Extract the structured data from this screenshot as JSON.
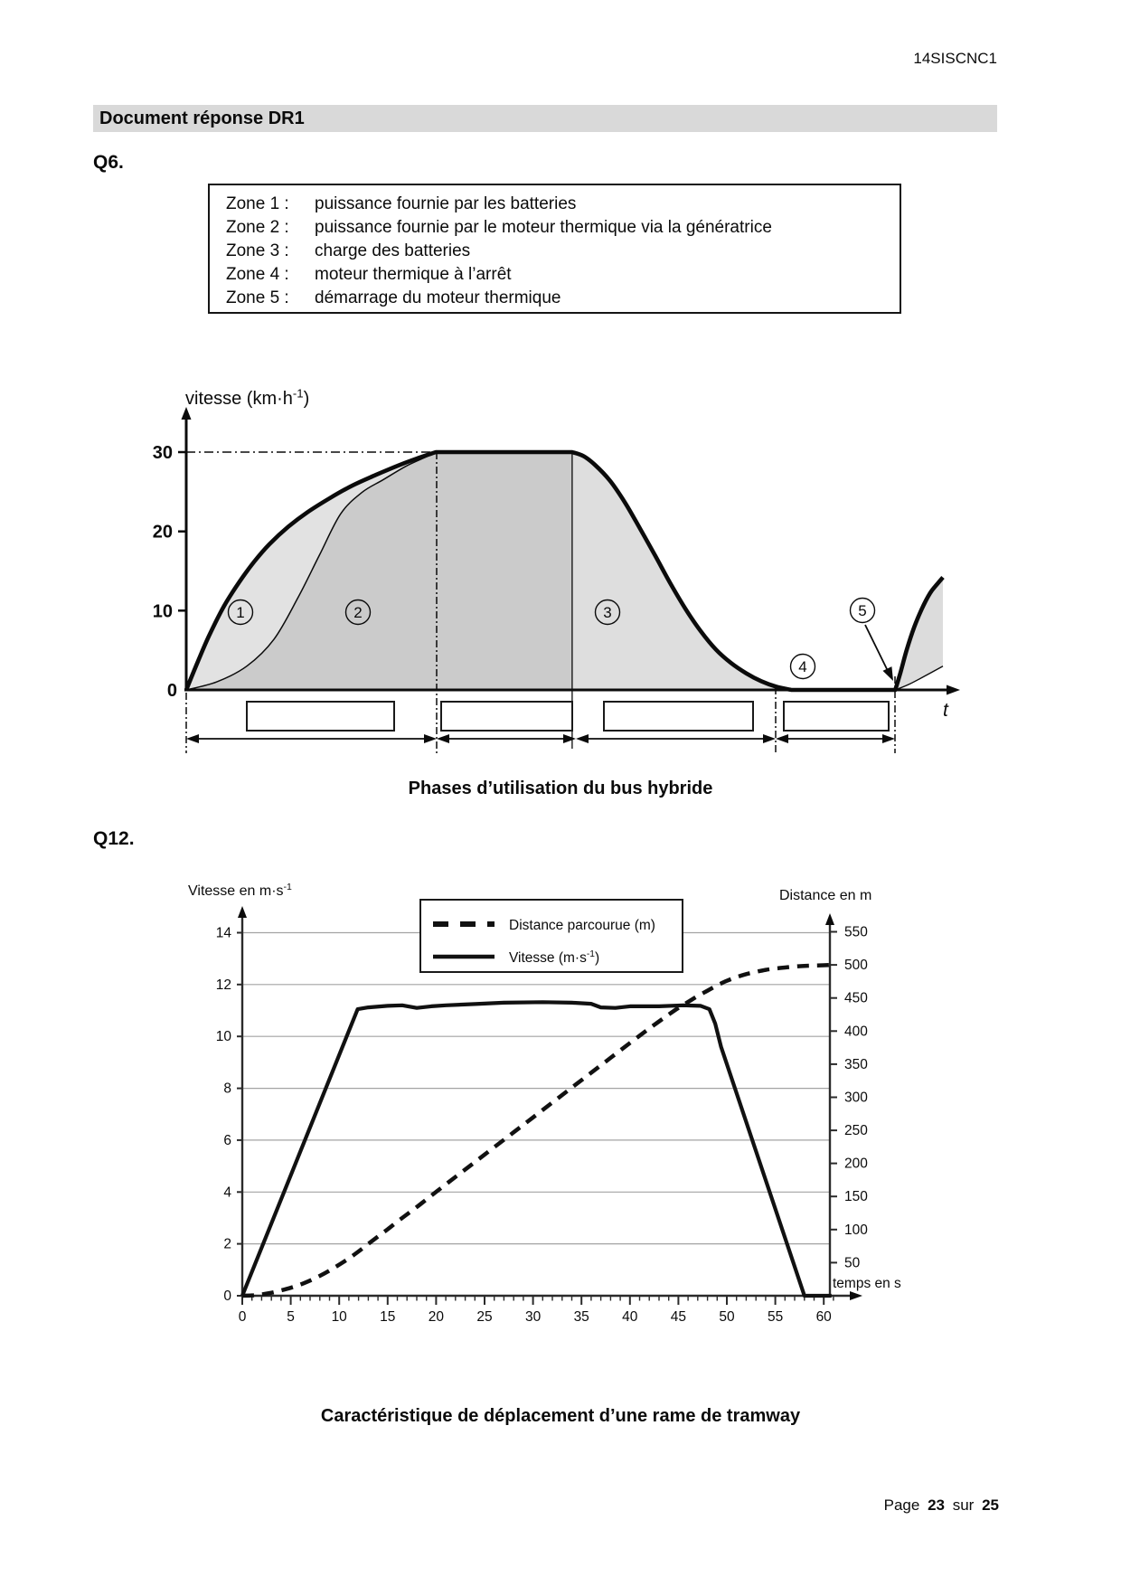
{
  "page": {
    "doc_code": "14SISCNC1",
    "footer_parts": [
      "Page",
      "23",
      "sur",
      "25"
    ]
  },
  "header": {
    "title": "Document réponse DR1"
  },
  "q6": {
    "label": "Q6.",
    "zones": [
      {
        "name": "Zone 1 :",
        "desc": "puissance fournie par les batteries"
      },
      {
        "name": "Zone 2 :",
        "desc": "puissance fournie par le moteur thermique via la génératrice"
      },
      {
        "name": "Zone 3 :",
        "desc": "charge des batteries"
      },
      {
        "name": "Zone 4 :",
        "desc": "moteur thermique à l’arrêt"
      },
      {
        "name": "Zone 5 :",
        "desc": "démarrage du moteur thermique"
      }
    ],
    "caption": "Phases d’utilisation du bus hybride"
  },
  "q12": {
    "label": "Q12.",
    "caption": "Caractéristique de déplacement d’une rame de tramway"
  },
  "chart_data": [
    {
      "id": "bus_phases",
      "type": "line",
      "title": "Phases d’utilisation du bus hybride",
      "ylabel": {
        "pre": "vitesse (km·h",
        "sup": "-1",
        "post": ")"
      },
      "xlabel": "t",
      "y_ticks": [
        30,
        20,
        10
      ],
      "y_zero_label": "0",
      "ylim": [
        0,
        33
      ],
      "grid": "off",
      "zone_markers": [
        "1",
        "2",
        "3",
        "4",
        "5"
      ],
      "answer_boxes": 4,
      "series": [
        {
          "name": "vitesse du bus (courbe épaisse)",
          "x_unit": "percent_of_time_axis",
          "y_unit": "km/h",
          "segments": {
            "rise": [
              [
                0,
                0
              ],
              [
                1.5,
                3.5
              ],
              [
                3,
                6.8
              ],
              [
                5,
                10.6
              ],
              [
                7,
                13.6
              ],
              [
                9,
                16.2
              ],
              [
                11,
                18.4
              ],
              [
                13.5,
                20.6
              ],
              [
                16,
                22.4
              ],
              [
                19,
                24.2
              ],
              [
                22,
                25.8
              ],
              [
                25,
                27.1
              ],
              [
                28,
                28.3
              ],
              [
                30.5,
                29.2
              ],
              [
                33,
                30
              ]
            ],
            "plateau": [
              [
                33,
                30
              ],
              [
                51,
                30
              ]
            ],
            "decline": [
              [
                51,
                30
              ],
              [
                52.5,
                29.5
              ],
              [
                54,
                28.4
              ],
              [
                56,
                26.4
              ],
              [
                58,
                23.6
              ],
              [
                60,
                20.3
              ],
              [
                62,
                16.9
              ],
              [
                64,
                13.4
              ],
              [
                66,
                10.2
              ],
              [
                68,
                7.4
              ],
              [
                70,
                5.1
              ],
              [
                72,
                3.4
              ],
              [
                74,
                2.1
              ],
              [
                76,
                1.1
              ],
              [
                78,
                0.4
              ],
              [
                80,
                0
              ]
            ],
            "stop": [
              [
                80,
                0
              ],
              [
                93.7,
                0
              ]
            ],
            "restart": [
              [
                93.7,
                0
              ],
              [
                94.4,
                2.2
              ],
              [
                95.2,
                5
              ],
              [
                96.2,
                7.9
              ],
              [
                97.2,
                10.2
              ],
              [
                98.3,
                12.2
              ],
              [
                99.2,
                13.3
              ],
              [
                100,
                14.2
              ]
            ]
          }
        },
        {
          "name": "frontière zone1/zone2 (courbe fine)",
          "points": [
            [
              0,
              0
            ],
            [
              4,
              1
            ],
            [
              8,
              3
            ],
            [
              11.6,
              6.4
            ],
            [
              14.8,
              11.7
            ],
            [
              17.6,
              17
            ],
            [
              20.4,
              22.2
            ],
            [
              23.2,
              24.9
            ],
            [
              26,
              26.5
            ],
            [
              29,
              28.2
            ],
            [
              31.5,
              29.3
            ],
            [
              33,
              30
            ]
          ]
        },
        {
          "name": "courbe fine zone 5",
          "points": [
            [
              93.7,
              0
            ],
            [
              95.5,
              0.7
            ],
            [
              97.5,
              1.7
            ],
            [
              100,
              3
            ]
          ]
        }
      ]
    },
    {
      "id": "tramway",
      "type": "line",
      "title": "Caractéristique de déplacement d’une rame de tramway",
      "xlabel": "temps en s",
      "ylabel_left": {
        "pre": "Vitesse en m·s",
        "sup": "-1"
      },
      "ylabel_right": "Distance en m",
      "x_ticks": [
        0,
        5,
        10,
        15,
        20,
        25,
        30,
        35,
        40,
        45,
        50,
        55,
        60
      ],
      "x_minor_step": 1,
      "x_range": [
        0,
        62
      ],
      "y_left_ticks": [
        0,
        2,
        4,
        6,
        8,
        10,
        12,
        14
      ],
      "y_left_range": [
        0,
        15
      ],
      "y_right_ticks": [
        550,
        500,
        450,
        400,
        350,
        300,
        250,
        200,
        150,
        100,
        50
      ],
      "y_right_range": [
        0,
        565
      ],
      "grid": "horizontal",
      "legend_position": "top-center",
      "legend": [
        {
          "label": "Distance parcourue (m)",
          "style": "dashed"
        },
        {
          "label_pre": "Vitesse (m·s",
          "label_sup": "-1",
          "label_post": ")",
          "style": "solid"
        }
      ],
      "series": [
        {
          "name": "Distance parcourue (m)",
          "axis": "right",
          "style": "dashed",
          "points": [
            [
              0,
              0
            ],
            [
              1,
              0.5
            ],
            [
              2,
              2
            ],
            [
              3,
              4.5
            ],
            [
              4,
              8
            ],
            [
              5,
              12
            ],
            [
              6,
              17
            ],
            [
              7,
              23
            ],
            [
              8,
              30
            ],
            [
              9,
              38
            ],
            [
              10,
              47
            ],
            [
              11,
              56.5
            ],
            [
              12,
              67
            ],
            [
              13,
              78.5
            ],
            [
              14,
              89.5
            ],
            [
              15,
              100.5
            ],
            [
              16,
              112
            ],
            [
              17,
              123
            ],
            [
              18,
              134
            ],
            [
              19,
              145.5
            ],
            [
              20,
              157
            ],
            [
              22,
              179.5
            ],
            [
              24,
              202
            ],
            [
              26,
              224.5
            ],
            [
              28,
              247
            ],
            [
              30,
              269.5
            ],
            [
              32,
              292
            ],
            [
              34,
              314.5
            ],
            [
              36,
              337
            ],
            [
              38,
              359.5
            ],
            [
              40,
              382
            ],
            [
              42,
              404
            ],
            [
              44,
              425
            ],
            [
              45,
              435
            ],
            [
              46,
              444
            ],
            [
              47,
              453
            ],
            [
              48,
              461
            ],
            [
              49,
              469
            ],
            [
              50,
              476
            ],
            [
              51,
              481.5
            ],
            [
              52,
              486
            ],
            [
              53,
              489.5
            ],
            [
              54,
              492.5
            ],
            [
              55,
              494.5
            ],
            [
              56,
              496
            ],
            [
              57,
              497.5
            ],
            [
              58,
              498.5
            ],
            [
              59,
              499
            ],
            [
              60,
              499.5
            ],
            [
              60.8,
              500
            ]
          ]
        },
        {
          "name": "Vitesse (m·s-1)",
          "axis": "left",
          "style": "solid",
          "points": [
            [
              0,
              0
            ],
            [
              11.9,
              11.05
            ],
            [
              13,
              11.12
            ],
            [
              15,
              11.18
            ],
            [
              16.5,
              11.2
            ],
            [
              18,
              11.1
            ],
            [
              19.5,
              11.16
            ],
            [
              21,
              11.2
            ],
            [
              24,
              11.25
            ],
            [
              27,
              11.3
            ],
            [
              31,
              11.32
            ],
            [
              34,
              11.3
            ],
            [
              36,
              11.26
            ],
            [
              37,
              11.12
            ],
            [
              38.5,
              11.1
            ],
            [
              40,
              11.16
            ],
            [
              43,
              11.16
            ],
            [
              45.5,
              11.2
            ],
            [
              47.3,
              11.18
            ],
            [
              48.2,
              11.05
            ],
            [
              48.8,
              10.5
            ],
            [
              49.4,
              9.6
            ],
            [
              58,
              0
            ],
            [
              60.8,
              0
            ]
          ]
        }
      ]
    }
  ]
}
